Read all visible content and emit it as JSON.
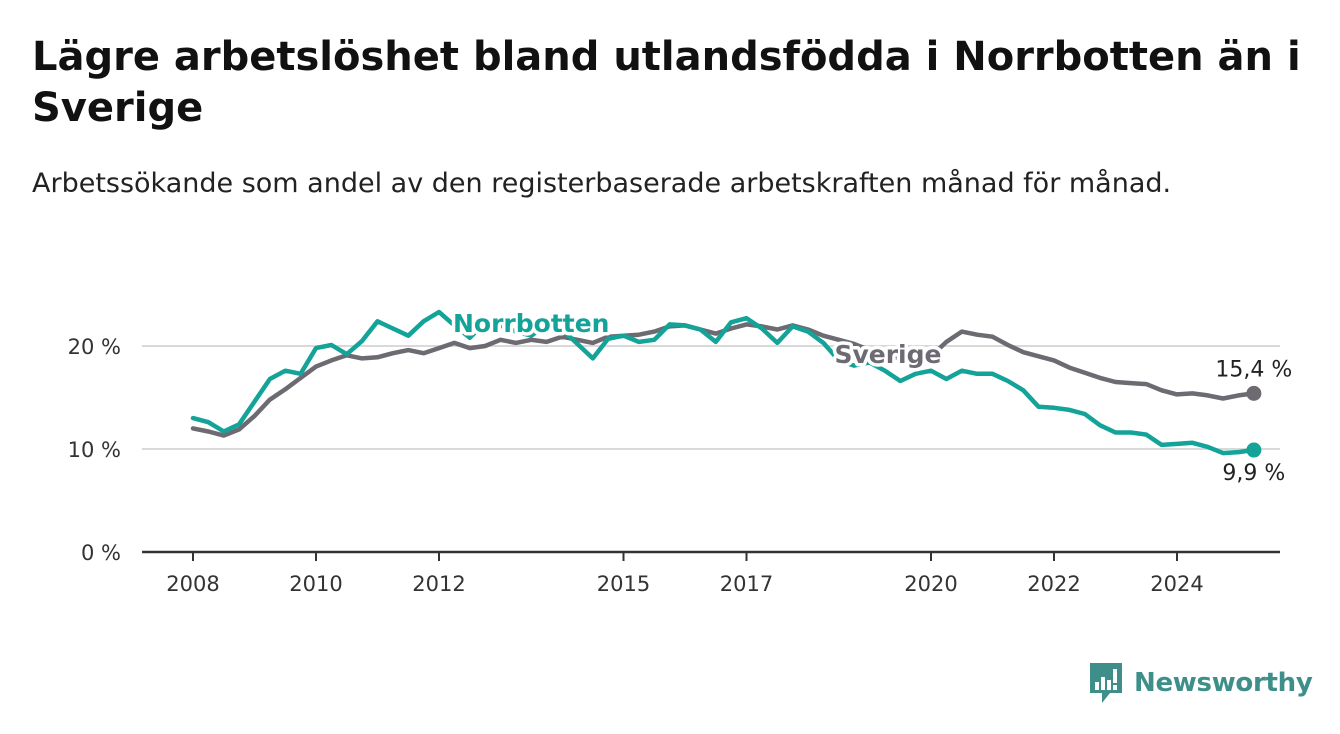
{
  "title": "Lägre arbetslöshet bland utlandsfödda i Norrbotten än i Sverige",
  "subtitle": "Arbetssökande som andel av den registerbaserade arbetskraften månad för månad.",
  "brand": {
    "name": "Newsworthy",
    "icon": "newsworthy-logo-icon",
    "color": "#3e8f8a"
  },
  "chart_data": {
    "type": "line",
    "grid": "horizontal",
    "ylim": [
      0,
      25
    ],
    "xlim": [
      2007.9,
      2025.45
    ],
    "yticks": [
      {
        "value": 0,
        "label": "0 %"
      },
      {
        "value": 10,
        "label": "10 %"
      },
      {
        "value": 20,
        "label": "20 %"
      }
    ],
    "xticks": [
      {
        "value": 2008,
        "label": "2008"
      },
      {
        "value": 2010,
        "label": "2010"
      },
      {
        "value": 2012,
        "label": "2012"
      },
      {
        "value": 2015,
        "label": "2015"
      },
      {
        "value": 2017,
        "label": "2017"
      },
      {
        "value": 2020,
        "label": "2020"
      },
      {
        "value": 2022,
        "label": "2022"
      },
      {
        "value": 2024,
        "label": "2024"
      }
    ],
    "series": [
      {
        "name": "Sverige",
        "color": "#6d6a72",
        "end_label": "15,4 %",
        "points": [
          [
            2008.0,
            12.0
          ],
          [
            2008.25,
            11.7
          ],
          [
            2008.5,
            11.3
          ],
          [
            2008.75,
            11.9
          ],
          [
            2009.0,
            13.2
          ],
          [
            2009.25,
            14.8
          ],
          [
            2009.5,
            15.8
          ],
          [
            2009.75,
            16.9
          ],
          [
            2010.0,
            18.0
          ],
          [
            2010.25,
            18.6
          ],
          [
            2010.5,
            19.1
          ],
          [
            2010.75,
            18.8
          ],
          [
            2011.0,
            18.9
          ],
          [
            2011.25,
            19.3
          ],
          [
            2011.5,
            19.6
          ],
          [
            2011.75,
            19.3
          ],
          [
            2012.0,
            19.8
          ],
          [
            2012.25,
            20.3
          ],
          [
            2012.5,
            19.8
          ],
          [
            2012.75,
            20.0
          ],
          [
            2013.0,
            20.6
          ],
          [
            2013.25,
            20.3
          ],
          [
            2013.5,
            20.6
          ],
          [
            2013.75,
            20.4
          ],
          [
            2014.0,
            20.9
          ],
          [
            2014.25,
            20.6
          ],
          [
            2014.5,
            20.3
          ],
          [
            2014.75,
            20.9
          ],
          [
            2015.0,
            21.0
          ],
          [
            2015.25,
            21.1
          ],
          [
            2015.5,
            21.4
          ],
          [
            2015.75,
            21.9
          ],
          [
            2016.0,
            22.0
          ],
          [
            2016.25,
            21.6
          ],
          [
            2016.5,
            21.2
          ],
          [
            2016.75,
            21.7
          ],
          [
            2017.0,
            22.1
          ],
          [
            2017.25,
            21.9
          ],
          [
            2017.5,
            21.6
          ],
          [
            2017.75,
            22.0
          ],
          [
            2018.0,
            21.6
          ],
          [
            2018.25,
            21.0
          ],
          [
            2018.5,
            20.6
          ],
          [
            2018.75,
            20.2
          ],
          [
            2019.0,
            19.6
          ],
          [
            2019.25,
            19.2
          ],
          [
            2019.5,
            18.8
          ],
          [
            2019.75,
            18.7
          ],
          [
            2020.0,
            19.0
          ],
          [
            2020.25,
            20.4
          ],
          [
            2020.5,
            21.4
          ],
          [
            2020.75,
            21.1
          ],
          [
            2021.0,
            20.9
          ],
          [
            2021.25,
            20.1
          ],
          [
            2021.5,
            19.4
          ],
          [
            2021.75,
            19.0
          ],
          [
            2022.0,
            18.6
          ],
          [
            2022.25,
            17.9
          ],
          [
            2022.5,
            17.4
          ],
          [
            2022.75,
            16.9
          ],
          [
            2023.0,
            16.5
          ],
          [
            2023.25,
            16.4
          ],
          [
            2023.5,
            16.3
          ],
          [
            2023.75,
            15.7
          ],
          [
            2024.0,
            15.3
          ],
          [
            2024.25,
            15.4
          ],
          [
            2024.5,
            15.2
          ],
          [
            2024.75,
            14.9
          ],
          [
            2025.0,
            15.2
          ],
          [
            2025.25,
            15.4
          ]
        ]
      },
      {
        "name": "Norrbotten",
        "color": "#13a398",
        "end_label": "9,9 %",
        "points": [
          [
            2008.0,
            13.0
          ],
          [
            2008.25,
            12.6
          ],
          [
            2008.5,
            11.7
          ],
          [
            2008.75,
            12.4
          ],
          [
            2009.0,
            14.6
          ],
          [
            2009.25,
            16.8
          ],
          [
            2009.5,
            17.6
          ],
          [
            2009.75,
            17.3
          ],
          [
            2010.0,
            19.8
          ],
          [
            2010.25,
            20.1
          ],
          [
            2010.5,
            19.2
          ],
          [
            2010.75,
            20.5
          ],
          [
            2011.0,
            22.4
          ],
          [
            2011.25,
            21.7
          ],
          [
            2011.5,
            21.0
          ],
          [
            2011.75,
            22.4
          ],
          [
            2012.0,
            23.3
          ],
          [
            2012.25,
            22.0
          ],
          [
            2012.5,
            20.8
          ],
          [
            2012.75,
            22.3
          ],
          [
            2013.0,
            22.0
          ],
          [
            2013.25,
            21.4
          ],
          [
            2013.5,
            21.0
          ],
          [
            2013.75,
            22.1
          ],
          [
            2014.0,
            21.6
          ],
          [
            2014.25,
            20.2
          ],
          [
            2014.5,
            18.8
          ],
          [
            2014.75,
            20.7
          ],
          [
            2015.0,
            21.0
          ],
          [
            2015.25,
            20.4
          ],
          [
            2015.5,
            20.6
          ],
          [
            2015.75,
            22.1
          ],
          [
            2016.0,
            22.0
          ],
          [
            2016.25,
            21.6
          ],
          [
            2016.5,
            20.4
          ],
          [
            2016.75,
            22.3
          ],
          [
            2017.0,
            22.7
          ],
          [
            2017.25,
            21.7
          ],
          [
            2017.5,
            20.3
          ],
          [
            2017.75,
            21.9
          ],
          [
            2018.0,
            21.4
          ],
          [
            2018.25,
            20.3
          ],
          [
            2018.5,
            18.6
          ],
          [
            2018.75,
            18.1
          ],
          [
            2019.0,
            18.4
          ],
          [
            2019.25,
            17.6
          ],
          [
            2019.5,
            16.6
          ],
          [
            2019.75,
            17.3
          ],
          [
            2020.0,
            17.6
          ],
          [
            2020.25,
            16.8
          ],
          [
            2020.5,
            17.6
          ],
          [
            2020.75,
            17.3
          ],
          [
            2021.0,
            17.3
          ],
          [
            2021.25,
            16.6
          ],
          [
            2021.5,
            15.7
          ],
          [
            2021.75,
            14.1
          ],
          [
            2022.0,
            14.0
          ],
          [
            2022.25,
            13.8
          ],
          [
            2022.5,
            13.4
          ],
          [
            2022.75,
            12.3
          ],
          [
            2023.0,
            11.6
          ],
          [
            2023.25,
            11.6
          ],
          [
            2023.5,
            11.4
          ],
          [
            2023.75,
            10.4
          ],
          [
            2024.0,
            10.5
          ],
          [
            2024.25,
            10.6
          ],
          [
            2024.5,
            10.2
          ],
          [
            2024.75,
            9.6
          ],
          [
            2025.0,
            9.7
          ],
          [
            2025.25,
            9.9
          ]
        ]
      }
    ]
  }
}
